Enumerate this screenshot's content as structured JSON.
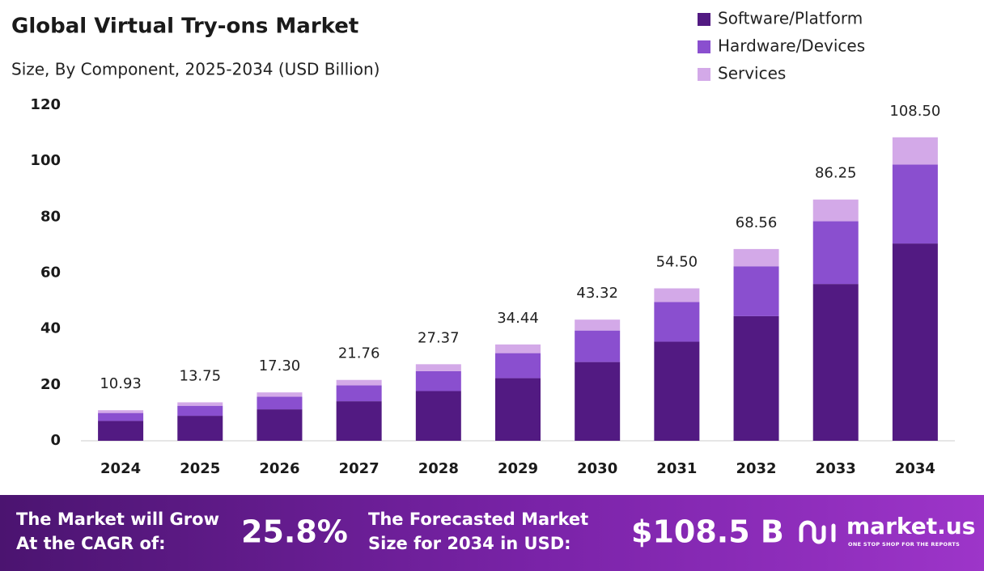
{
  "chart_data": {
    "type": "stacked-bar",
    "title": "Global Virtual Try-ons Market",
    "subtitle": "Size, By Component, 2025-2034 (USD Billion)",
    "categories": [
      "2024",
      "2025",
      "2026",
      "2027",
      "2028",
      "2029",
      "2030",
      "2031",
      "2032",
      "2033",
      "2034"
    ],
    "series": [
      {
        "name": "Software/Platform",
        "color": "#521a82",
        "values": [
          7.1,
          8.94,
          11.25,
          14.14,
          17.79,
          22.39,
          28.16,
          35.43,
          44.56,
          56.06,
          70.53
        ]
      },
      {
        "name": "Hardware/Devices",
        "color": "#8a4fcf",
        "values": [
          2.84,
          3.58,
          4.5,
          5.66,
          7.12,
          8.95,
          11.26,
          14.17,
          17.83,
          22.43,
          28.21
        ]
      },
      {
        "name": "Services",
        "color": "#d3a9e8",
        "values": [
          0.99,
          1.23,
          1.55,
          1.96,
          2.46,
          3.1,
          3.9,
          4.9,
          6.17,
          7.76,
          9.76
        ]
      }
    ],
    "totals": {
      "values": [
        10.93,
        13.75,
        17.3,
        21.76,
        27.37,
        34.44,
        43.32,
        54.5,
        68.56,
        86.25,
        108.5
      ],
      "value_labels": [
        "10.93",
        "13.75",
        "17.30",
        "21.76",
        "27.37",
        "34.44",
        "43.32",
        "54.50",
        "68.56",
        "86.25",
        "108.50"
      ]
    },
    "ylim": [
      0,
      120
    ],
    "yticks": [
      0,
      20,
      40,
      60,
      80,
      100,
      120
    ],
    "legend": "top-right"
  },
  "footer": {
    "cagr_text": [
      "The Market will Grow",
      "At the CAGR of:"
    ],
    "cagr_value": "25.8%",
    "forecast_text": [
      "The Forecasted Market",
      "Size for 2034 in USD:"
    ],
    "forecast_value": "$108.5 B",
    "brand": "market.us",
    "tagline": "ONE STOP SHOP FOR THE REPORTS"
  }
}
